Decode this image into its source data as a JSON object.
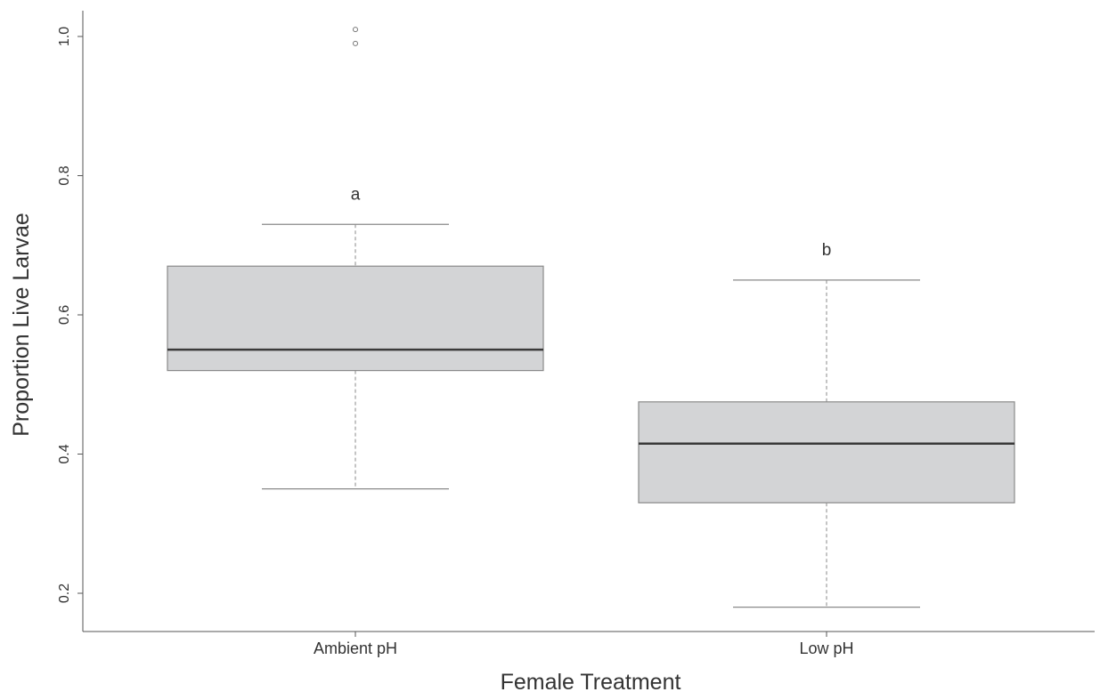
{
  "chart_data": {
    "type": "boxplot",
    "title": "",
    "xlabel": "Female Treatment",
    "ylabel": "Proportion Live Larvae",
    "ylim": [
      0.14,
      1.04
    ],
    "yticks": [
      0.2,
      0.4,
      0.6,
      0.8,
      1.0
    ],
    "ytick_labels": [
      "0.2",
      "0.4",
      "0.6",
      "0.8",
      "1.0"
    ],
    "grid": false,
    "categories": [
      "Ambient pH",
      "Low pH"
    ],
    "boxes": [
      {
        "category": "Ambient pH",
        "whisker_low": 0.35,
        "q1": 0.52,
        "median": 0.55,
        "q3": 0.67,
        "whisker_high": 0.73,
        "outliers": [
          0.99,
          1.01
        ],
        "annotation": "a"
      },
      {
        "category": "Low pH",
        "whisker_low": 0.18,
        "q1": 0.33,
        "median": 0.415,
        "q3": 0.475,
        "whisker_high": 0.65,
        "outliers": [],
        "annotation": "b"
      }
    ],
    "colors": {
      "box_fill": "#d3d4d6",
      "box_stroke": "#8a8a8a",
      "median": "#3a3a3a",
      "axis": "#555555",
      "text": "#333333"
    }
  }
}
